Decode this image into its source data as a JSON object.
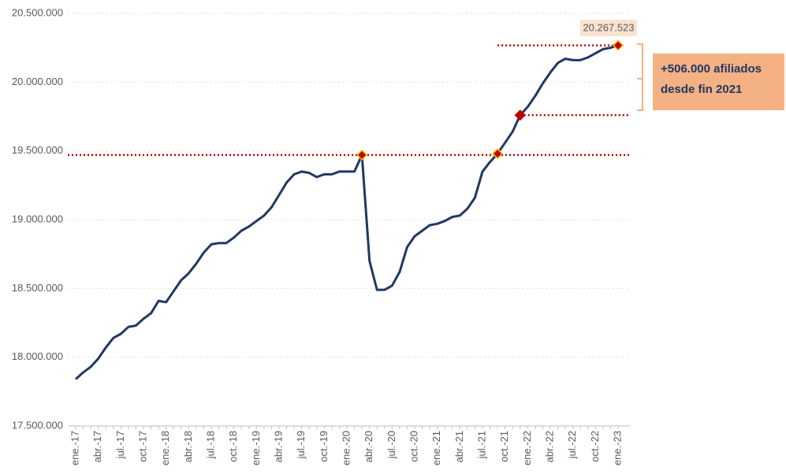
{
  "chart_data": {
    "type": "line",
    "categories": [
      "ene.-17",
      null,
      null,
      "abr.-17",
      null,
      null,
      "jul.-17",
      null,
      null,
      "oct.-17",
      null,
      null,
      "ene.-18",
      null,
      null,
      "abr.-18",
      null,
      null,
      "jul.-18",
      null,
      null,
      "oct.-18",
      null,
      null,
      "ene.-19",
      null,
      null,
      "abr.-19",
      null,
      null,
      "jul.-19",
      null,
      null,
      "oct.-19",
      null,
      null,
      "ene.-20",
      null,
      null,
      "abr.-20",
      null,
      null,
      "jul.-20",
      null,
      null,
      "oct.-20",
      null,
      null,
      "ene.-21",
      null,
      null,
      "abr.-21",
      null,
      null,
      "jul.-21",
      null,
      null,
      "oct.-21",
      null,
      null,
      "ene.-22",
      null,
      null,
      "abr.-22",
      null,
      null,
      "jul.-22",
      null,
      null,
      "oct.-22",
      null,
      null,
      "ene.-23"
    ],
    "series": [
      {
        "color": "#203864",
        "values": [
          17840000,
          17890000,
          17930000,
          17990000,
          18070000,
          18140000,
          18170000,
          18220000,
          18230000,
          18280000,
          18320000,
          18410000,
          18400000,
          18480000,
          18560000,
          18610000,
          18680000,
          18760000,
          18820000,
          18830000,
          18830000,
          18870000,
          18920000,
          18950000,
          18990000,
          19030000,
          19090000,
          19180000,
          19270000,
          19330000,
          19350000,
          19340000,
          19310000,
          19330000,
          19330000,
          19350000,
          19350000,
          19350000,
          19470000,
          18700000,
          18490000,
          18490000,
          18520000,
          18620000,
          18800000,
          18880000,
          18920000,
          18960000,
          18970000,
          18990000,
          19020000,
          19030000,
          19080000,
          19160000,
          19350000,
          19420000,
          19480000,
          19560000,
          19640000,
          19760000,
          19820000,
          19900000,
          19990000,
          20070000,
          20140000,
          20170000,
          20160000,
          20160000,
          20180000,
          20210000,
          20240000,
          20250000,
          20267523
        ],
        "value_labels": [
          null,
          null,
          null,
          null,
          null,
          null,
          null,
          null,
          null,
          null,
          null,
          null,
          null,
          null,
          null,
          null,
          null,
          null,
          null,
          null,
          null,
          null,
          null,
          null,
          null,
          null,
          null,
          null,
          null,
          null,
          null,
          null,
          null,
          null,
          null,
          null,
          null,
          null,
          null,
          null,
          null,
          null,
          null,
          null,
          null,
          null,
          null,
          null,
          null,
          null,
          null,
          null,
          null,
          null,
          null,
          null,
          null,
          null,
          null,
          null,
          null,
          null,
          null,
          null,
          null,
          null,
          null,
          null,
          null,
          null,
          null,
          null,
          "20.267.523"
        ]
      }
    ],
    "highlight_points": [
      38,
      56,
      59,
      72
    ],
    "ylim": [
      17500000,
      20500000
    ],
    "yticks": [
      {
        "value": 17500000,
        "label": "17.500.000"
      },
      {
        "value": 18000000,
        "label": "18.000.000"
      },
      {
        "value": 18500000,
        "label": "18.500.000"
      },
      {
        "value": 19000000,
        "label": "19.000.000"
      },
      {
        "value": 19500000,
        "label": "19.500.000"
      },
      {
        "value": 20000000,
        "label": "20.000.000"
      },
      {
        "value": 20500000,
        "label": "20.500.000"
      }
    ],
    "grid": true,
    "annotation": [
      "+506.000  afiliados",
      "desde fin 2021"
    ]
  }
}
